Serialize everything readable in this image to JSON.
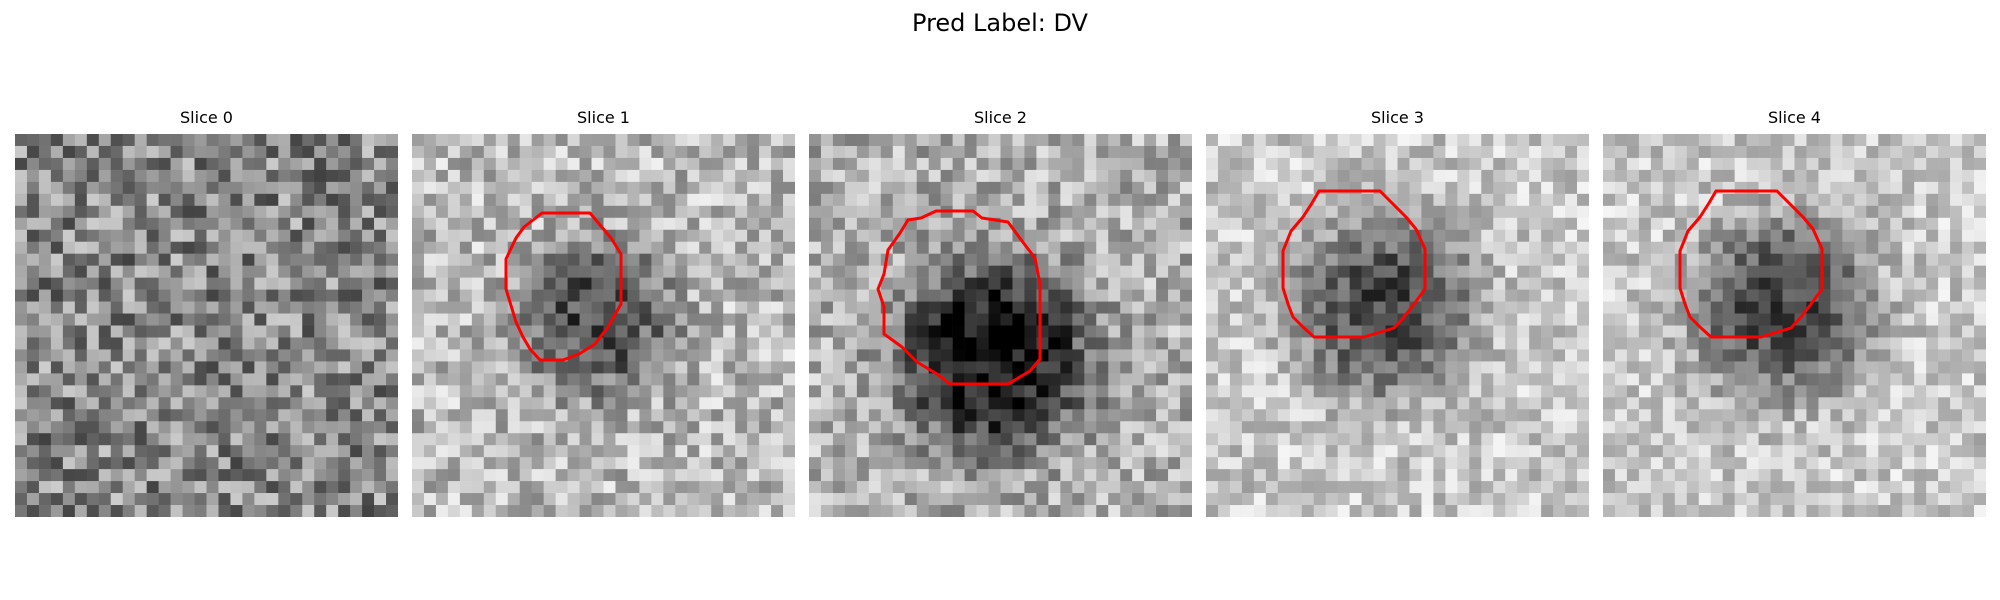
{
  "figure": {
    "title": "Pred Label: DV",
    "contour_color": "#ff0000",
    "slices": [
      {
        "label": "Slice 0",
        "contour": false,
        "pattern": "noise"
      },
      {
        "label": "Slice 1",
        "contour": true,
        "pattern": "dark-blob-moderate"
      },
      {
        "label": "Slice 2",
        "contour": true,
        "pattern": "dark-blob-strong"
      },
      {
        "label": "Slice 3",
        "contour": true,
        "pattern": "dark-blob-light-bg"
      },
      {
        "label": "Slice 4",
        "contour": true,
        "pattern": "dark-blob-light-bg"
      }
    ]
  }
}
